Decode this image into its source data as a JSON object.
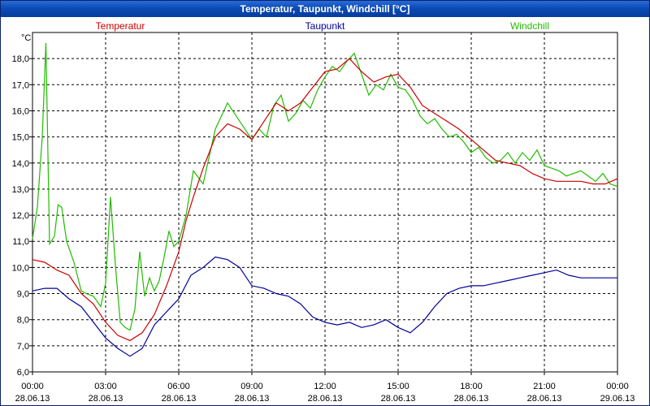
{
  "window": {
    "title": "Temperatur, Taupunkt, Windchill [°C]"
  },
  "chart_data": {
    "type": "line",
    "title": "Temperatur, Taupunkt, Windchill [°C]",
    "ylabel": "°C",
    "ylim": [
      6.0,
      19.0
    ],
    "xlim": [
      0,
      24
    ],
    "grid": true,
    "yticks": [
      6.0,
      7.0,
      8.0,
      9.0,
      10.0,
      11.0,
      12.0,
      13.0,
      14.0,
      15.0,
      16.0,
      17.0,
      18.0
    ],
    "ytick_labels": [
      "6,0",
      "7,0",
      "8,0",
      "9,0",
      "10,0",
      "11,0",
      "12,0",
      "13,0",
      "14,0",
      "15,0",
      "16,0",
      "17,0",
      "18,0"
    ],
    "xticks": [
      0,
      3,
      6,
      9,
      12,
      15,
      18,
      21,
      24
    ],
    "xtick_labels": [
      [
        "00:00",
        "28.06.13"
      ],
      [
        "03:00",
        "28.06.13"
      ],
      [
        "06:00",
        "28.06.13"
      ],
      [
        "09:00",
        "28.06.13"
      ],
      [
        "12:00",
        "28.06.13"
      ],
      [
        "15:00",
        "28.06.13"
      ],
      [
        "18:00",
        "28.06.13"
      ],
      [
        "21:00",
        "28.06.13"
      ],
      [
        "00:00",
        "29.06.13"
      ]
    ],
    "series": [
      {
        "name": "Temperatur",
        "color": "#cc0000",
        "x": [
          0,
          0.5,
          1,
          1.5,
          2,
          2.5,
          3,
          3.5,
          4,
          4.5,
          5,
          5.5,
          6,
          6.3,
          6.6,
          7,
          7.5,
          8,
          8.5,
          9,
          9.5,
          10,
          10.5,
          11,
          11.5,
          12,
          12.5,
          13,
          13.5,
          14,
          14.5,
          15,
          15.5,
          16,
          16.5,
          17,
          17.5,
          18,
          18.5,
          19,
          19.5,
          20,
          20.5,
          21,
          21.5,
          22,
          22.5,
          23,
          23.5,
          24
        ],
        "values": [
          10.3,
          10.2,
          9.9,
          9.7,
          9.0,
          8.6,
          7.9,
          7.4,
          7.2,
          7.5,
          8.2,
          9.3,
          10.6,
          11.8,
          12.7,
          13.8,
          15.0,
          15.5,
          15.3,
          14.9,
          15.6,
          16.3,
          16.0,
          16.3,
          16.9,
          17.5,
          17.6,
          18.0,
          17.5,
          17.1,
          17.3,
          17.4,
          16.9,
          16.2,
          15.9,
          15.6,
          15.3,
          14.9,
          14.5,
          14.1,
          14.0,
          13.9,
          13.6,
          13.4,
          13.3,
          13.3,
          13.3,
          13.2,
          13.2,
          13.4
        ]
      },
      {
        "name": "Taupunkt",
        "color": "#000099",
        "x": [
          0,
          0.5,
          1,
          1.5,
          2,
          2.5,
          3,
          3.5,
          4,
          4.5,
          5,
          5.5,
          6,
          6.5,
          7,
          7.5,
          8,
          8.5,
          9,
          9.5,
          10,
          10.5,
          11,
          11.5,
          12,
          12.5,
          13,
          13.5,
          14,
          14.5,
          15,
          15.5,
          16,
          16.5,
          17,
          17.5,
          18,
          18.5,
          19,
          19.5,
          20,
          20.5,
          21,
          21.5,
          22,
          22.5,
          23,
          23.5,
          24
        ],
        "values": [
          9.1,
          9.2,
          9.2,
          8.8,
          8.5,
          7.9,
          7.3,
          6.9,
          6.6,
          6.9,
          7.8,
          8.3,
          8.8,
          9.7,
          10.0,
          10.4,
          10.3,
          10.0,
          9.3,
          9.2,
          9.0,
          8.9,
          8.6,
          8.1,
          7.9,
          7.8,
          7.9,
          7.7,
          7.8,
          8.0,
          7.7,
          7.5,
          7.9,
          8.5,
          9.0,
          9.2,
          9.3,
          9.3,
          9.4,
          9.5,
          9.6,
          9.7,
          9.8,
          9.9,
          9.7,
          9.6,
          9.6,
          9.6,
          9.6
        ]
      },
      {
        "name": "Windchill",
        "color": "#22bb00",
        "x": [
          0,
          0.2,
          0.4,
          0.55,
          0.7,
          0.9,
          1.05,
          1.2,
          1.4,
          1.7,
          2.0,
          2.2,
          2.5,
          2.8,
          3.0,
          3.2,
          3.4,
          3.6,
          3.8,
          4.0,
          4.2,
          4.4,
          4.6,
          4.8,
          5.0,
          5.2,
          5.4,
          5.6,
          5.8,
          6.0,
          6.3,
          6.6,
          7.0,
          7.5,
          8.0,
          8.5,
          9.0,
          9.3,
          9.6,
          9.9,
          10.2,
          10.5,
          10.8,
          11.1,
          11.4,
          11.7,
          12.0,
          12.3,
          12.6,
          12.9,
          13.2,
          13.5,
          13.8,
          14.1,
          14.4,
          14.7,
          15.0,
          15.3,
          15.6,
          15.9,
          16.2,
          16.5,
          16.8,
          17.1,
          17.4,
          17.7,
          18.0,
          18.3,
          18.6,
          18.9,
          19.2,
          19.5,
          19.8,
          20.1,
          20.4,
          20.7,
          21.0,
          21.3,
          21.6,
          21.9,
          22.2,
          22.5,
          22.8,
          23.1,
          23.4,
          23.7,
          24.0
        ],
        "values": [
          11.1,
          12.3,
          15.0,
          18.6,
          10.9,
          11.2,
          12.4,
          12.3,
          11.0,
          10.2,
          9.1,
          9.0,
          8.9,
          8.5,
          9.4,
          12.7,
          10.1,
          7.9,
          7.7,
          7.6,
          8.4,
          10.6,
          8.9,
          9.6,
          9.1,
          9.5,
          10.4,
          11.4,
          10.8,
          11.0,
          12.0,
          13.7,
          13.2,
          15.3,
          16.3,
          15.6,
          14.9,
          15.3,
          15.0,
          16.2,
          16.6,
          15.6,
          15.9,
          16.4,
          16.1,
          16.8,
          17.3,
          17.7,
          17.5,
          17.9,
          18.2,
          17.4,
          16.6,
          17.0,
          16.8,
          17.4,
          16.9,
          16.8,
          16.4,
          15.8,
          15.5,
          15.7,
          15.3,
          15.0,
          15.1,
          14.8,
          14.4,
          14.6,
          14.2,
          14.0,
          14.1,
          14.4,
          14.0,
          14.4,
          14.1,
          14.5,
          13.9,
          13.8,
          13.7,
          13.5,
          13.6,
          13.7,
          13.5,
          13.3,
          13.6,
          13.2,
          13.1
        ]
      }
    ]
  }
}
